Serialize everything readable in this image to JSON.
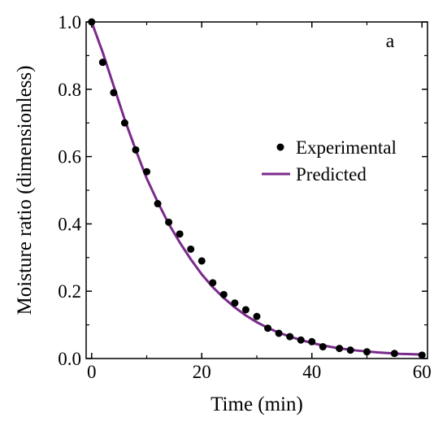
{
  "chart_data": {
    "type": "scatter",
    "title": "",
    "panel_label": "a",
    "xlabel": "Time (min)",
    "ylabel": "Moisture ratio (dimensionless)",
    "xlim": [
      -1,
      61
    ],
    "ylim": [
      0.0,
      1.0
    ],
    "x_ticks": [
      0,
      20,
      40,
      60
    ],
    "x_tick_labels": [
      "0",
      "20",
      "40",
      "60"
    ],
    "y_ticks": [
      0.0,
      0.2,
      0.4,
      0.6,
      0.8,
      1.0
    ],
    "y_tick_labels": [
      "0.0",
      "0.2",
      "0.4",
      "0.6",
      "0.8",
      "1.0"
    ],
    "grid": false,
    "legend_position": "center-right",
    "colors": {
      "experimental": "#000000",
      "predicted": "#7a2a8c"
    },
    "series": [
      {
        "name": "Experimental",
        "kind": "scatter",
        "x": [
          0,
          2,
          4,
          6,
          8,
          10,
          12,
          14,
          16,
          18,
          20,
          22,
          24,
          26,
          28,
          30,
          32,
          34,
          36,
          38,
          40,
          42,
          45,
          47,
          50,
          55,
          60
        ],
        "y": [
          1.0,
          0.88,
          0.79,
          0.7,
          0.62,
          0.555,
          0.46,
          0.405,
          0.37,
          0.325,
          0.29,
          0.225,
          0.19,
          0.165,
          0.145,
          0.125,
          0.09,
          0.075,
          0.065,
          0.055,
          0.05,
          0.035,
          0.03,
          0.025,
          0.02,
          0.015,
          0.01
        ]
      },
      {
        "name": "Predicted",
        "kind": "line",
        "x": [
          0,
          2,
          4,
          6,
          8,
          10,
          12,
          14,
          16,
          18,
          20,
          22,
          24,
          26,
          28,
          30,
          32,
          34,
          36,
          38,
          40,
          42,
          44,
          46,
          48,
          50,
          52,
          54,
          56,
          58,
          60
        ],
        "y": [
          1.0,
          0.91,
          0.81,
          0.71,
          0.62,
          0.535,
          0.465,
          0.4,
          0.345,
          0.295,
          0.25,
          0.212,
          0.18,
          0.152,
          0.128,
          0.108,
          0.091,
          0.077,
          0.065,
          0.055,
          0.046,
          0.039,
          0.033,
          0.028,
          0.024,
          0.021,
          0.018,
          0.016,
          0.014,
          0.013,
          0.012
        ]
      }
    ]
  }
}
